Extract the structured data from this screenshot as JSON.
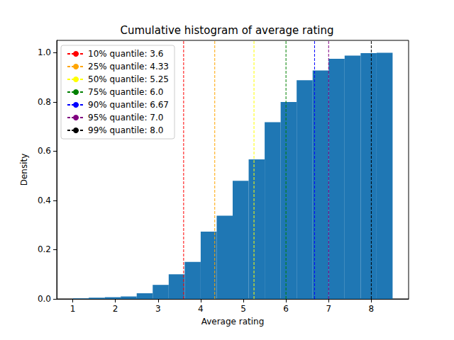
{
  "chart_data": {
    "type": "histogram",
    "title": "Cumulative histogram of average rating",
    "x_label": "Average rating",
    "y_label": "Density",
    "bins": [
      1,
      1.375,
      1.75,
      2.125,
      2.5,
      2.875,
      3.25,
      3.625,
      4.0,
      4.375,
      4.75,
      5.125,
      5.5,
      5.875,
      6.25,
      6.625,
      7.0,
      7.375,
      7.75,
      8.125,
      8.5
    ],
    "values": [
      0.002,
      0.005,
      0.007,
      0.01,
      0.023,
      0.057,
      0.1,
      0.15,
      0.273,
      0.338,
      0.48,
      0.567,
      0.718,
      0.8,
      0.888,
      0.928,
      0.975,
      0.988,
      0.998,
      1.0
    ],
    "color": "#1f77b4",
    "xlim": [
      0.625,
      8.875
    ],
    "xticks": [
      1,
      2,
      3,
      4,
      5,
      6,
      7,
      8
    ],
    "ylim": [
      0,
      1.05
    ],
    "yticks": [
      {
        "value": 0,
        "label": "0.0"
      },
      {
        "value": 0.2,
        "label": "0.2"
      },
      {
        "value": 0.4,
        "label": "0.4"
      },
      {
        "value": 0.6,
        "label": "0.6"
      },
      {
        "value": 0.8,
        "label": "0.8"
      },
      {
        "value": 1.0,
        "label": "1.0"
      }
    ],
    "grid": false,
    "legend": "upper left",
    "series": [
      {
        "name": "10% quantile: 3.6",
        "type": "vline",
        "x": 3.6,
        "color": "#ff0000",
        "line_style": "dashed"
      },
      {
        "name": "25% quantile: 4.33",
        "type": "vline",
        "x": 4.33,
        "color": "#ffa500",
        "line_style": "dashed"
      },
      {
        "name": "50% quantile: 5.25",
        "type": "vline",
        "x": 5.25,
        "color": "#ffff00",
        "line_style": "dashed"
      },
      {
        "name": "75% quantile: 6.0",
        "type": "vline",
        "x": 6.0,
        "color": "#008000",
        "line_style": "dashed"
      },
      {
        "name": "90% quantile: 6.67",
        "type": "vline",
        "x": 6.67,
        "color": "#0000ff",
        "line_style": "dashed"
      },
      {
        "name": "95% quantile: 7.0",
        "type": "vline",
        "x": 7.0,
        "color": "#800080",
        "line_style": "dashed"
      },
      {
        "name": "99% quantile: 8.0",
        "type": "vline",
        "x": 8.0,
        "color": "#000000",
        "line_style": "dashed"
      }
    ]
  }
}
